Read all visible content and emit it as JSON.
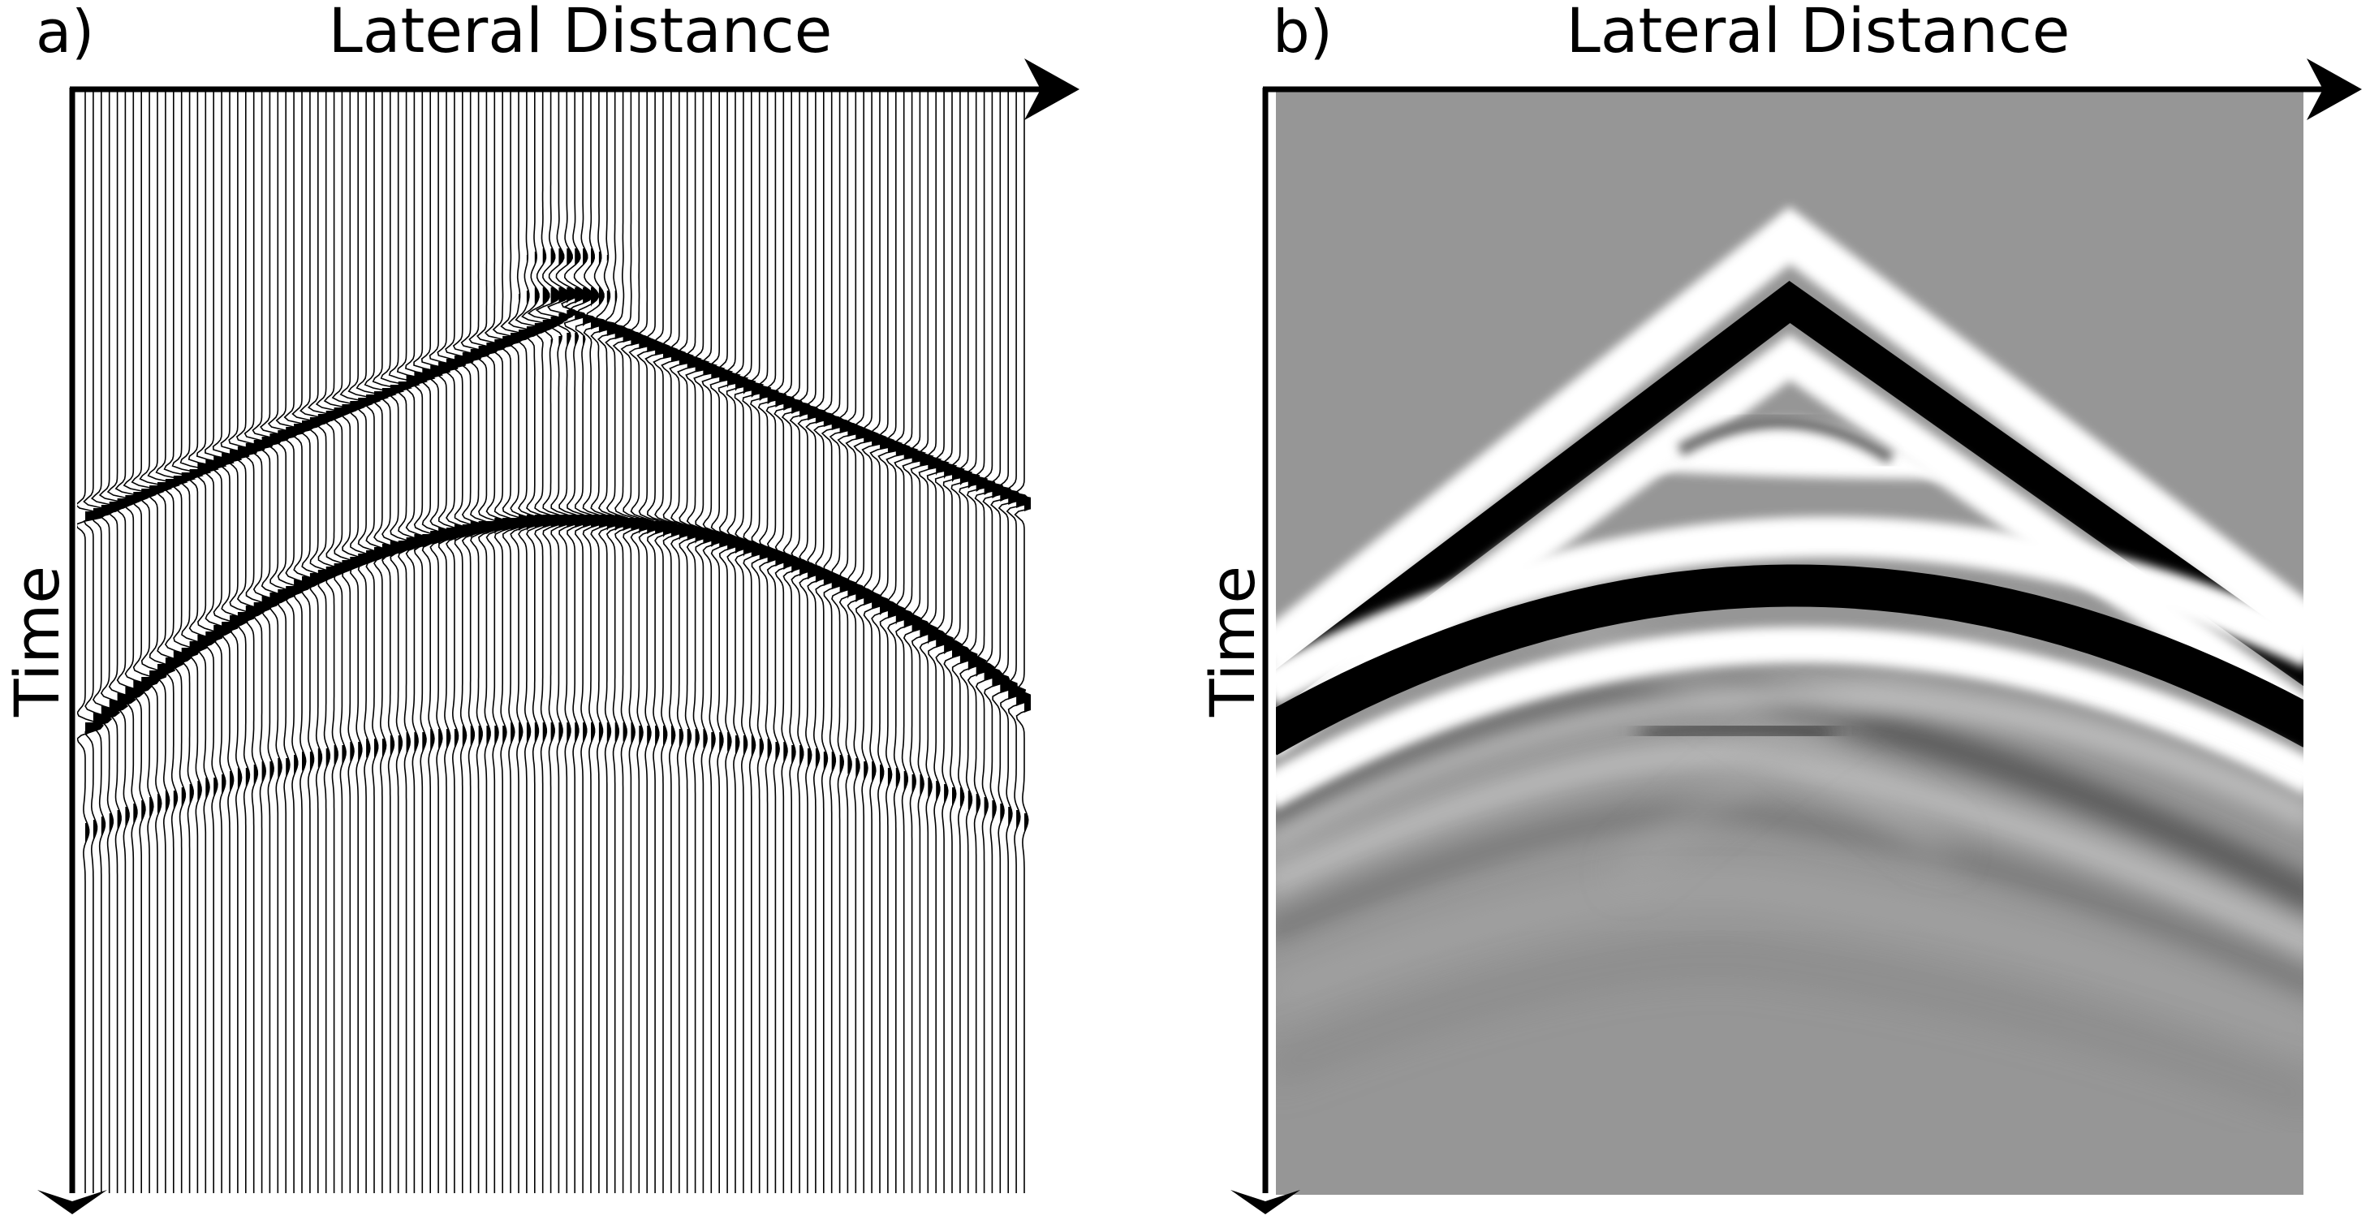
{
  "panel_a": {
    "label": "a)",
    "x_axis_label": "Lateral Distance",
    "y_axis_label": "Time",
    "display": "wiggle traces (variable area)"
  },
  "panel_b": {
    "label": "b)",
    "x_axis_label": "Lateral Distance",
    "y_axis_label": "Time",
    "display": "grayscale density image"
  },
  "colors": {
    "axis": "#000000",
    "background": "#ffffff",
    "neutral_gray": "#969696",
    "positive_lobe": "#ffffff",
    "negative_lobe": "#000000"
  }
}
